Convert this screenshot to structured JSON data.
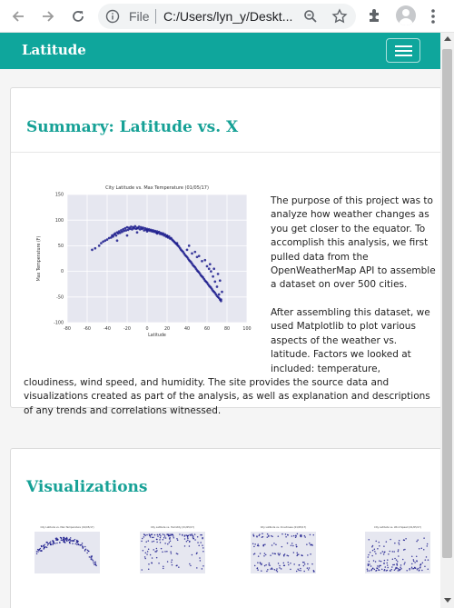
{
  "browser": {
    "omnibox_scheme": "File",
    "omnibox_url": "C:/Users/lyn_y/Deskt..."
  },
  "site": {
    "brand": "Latitude"
  },
  "summary": {
    "title": "Summary: Latitude vs. X",
    "paragraph_1": "The purpose of this project was to analyze how weather changes as you get closer to the equator. To accomplish this analysis, we first pulled data from the OpenWeatherMap API to assemble a dataset on over 500 cities.",
    "paragraph_2": "After assembling this dataset, we used Matplotlib to plot various aspects of the weather vs. latitude. Factors we looked at included: temperature,",
    "paragraph_3": "cloudiness, wind speed, and humidity. The site provides the source data and visualizations created as part of the analysis, as well as explanation and descriptions of any trends and correlations witnessed."
  },
  "visualizations": {
    "title": "Visualizations"
  },
  "chart_data": {
    "type": "scatter",
    "title": "City Latitude vs. Max Temperature (01/05/17)",
    "xlabel": "Latitude",
    "ylabel": "Max Temperature (F)",
    "xlim": [
      -80,
      100
    ],
    "ylim": [
      -100,
      150
    ],
    "xticks": [
      -80,
      -60,
      -40,
      -20,
      0,
      20,
      40,
      60,
      80,
      100
    ],
    "yticks": [
      -100,
      -50,
      0,
      50,
      100,
      150
    ],
    "grid": true,
    "series": [
      {
        "marker_color": "#1a1a8c",
        "x": [
          -55,
          -52,
          -48,
          -46,
          -44,
          -42,
          -40,
          -38,
          -36,
          -35,
          -34,
          -33,
          -32,
          -31,
          -30,
          -29,
          -28,
          -27,
          -26,
          -25,
          -24,
          -23,
          -22,
          -21,
          -20,
          -19,
          -18,
          -17,
          -16,
          -15,
          -14,
          -13,
          -12,
          -11,
          -10,
          -9,
          -8,
          -7,
          -6,
          -5,
          -4,
          -3,
          -2,
          -1,
          0,
          1,
          2,
          3,
          4,
          5,
          6,
          7,
          8,
          9,
          10,
          11,
          12,
          13,
          14,
          15,
          16,
          17,
          18,
          19,
          20,
          21,
          22,
          23,
          24,
          25,
          26,
          27,
          28,
          29,
          30,
          31,
          32,
          33,
          34,
          35,
          36,
          37,
          38,
          39,
          40,
          41,
          42,
          43,
          44,
          45,
          46,
          47,
          48,
          49,
          50,
          51,
          52,
          53,
          54,
          55,
          56,
          57,
          58,
          59,
          60,
          61,
          62,
          63,
          64,
          65,
          66,
          67,
          68,
          69,
          70,
          71,
          72,
          73,
          74,
          75,
          -30,
          -20,
          -10,
          0,
          10,
          20,
          30,
          40,
          45,
          50,
          55,
          60,
          62,
          64,
          66,
          68,
          70,
          72,
          74,
          42,
          48,
          52,
          58,
          63,
          67,
          71,
          73
        ],
        "y": [
          42,
          45,
          50,
          55,
          58,
          60,
          62,
          65,
          66,
          70,
          68,
          72,
          74,
          70,
          76,
          74,
          78,
          75,
          80,
          77,
          82,
          79,
          84,
          80,
          86,
          81,
          85,
          83,
          87,
          82,
          86,
          84,
          88,
          83,
          85,
          84,
          87,
          82,
          86,
          83,
          85,
          80,
          84,
          81,
          83,
          80,
          82,
          79,
          81,
          78,
          80,
          77,
          79,
          76,
          78,
          75,
          77,
          73,
          75,
          72,
          74,
          70,
          72,
          68,
          70,
          66,
          68,
          64,
          65,
          62,
          60,
          58,
          56,
          54,
          52,
          50,
          48,
          45,
          42,
          40,
          38,
          35,
          32,
          30,
          28,
          25,
          22,
          20,
          18,
          15,
          12,
          10,
          8,
          5,
          2,
          0,
          -2,
          -5,
          -8,
          -10,
          -12,
          -15,
          -18,
          -20,
          -22,
          -25,
          -28,
          -30,
          -32,
          -35,
          -38,
          -40,
          -42,
          -45,
          -48,
          -50,
          -52,
          -55,
          -58,
          -40,
          60,
          70,
          76,
          78,
          74,
          68,
          55,
          42,
          35,
          28,
          20,
          10,
          5,
          0,
          -10,
          -20,
          -30,
          -45,
          -55,
          50,
          38,
          30,
          22,
          14,
          5,
          -5,
          -18
        ]
      }
    ]
  },
  "thumbnail_charts": [
    {
      "title": "City Latitude vs. Max Temperature (01/05/17)",
      "pattern": "arch"
    },
    {
      "title": "City Latitude vs. Humidity (01/05/17)",
      "pattern": "top-band"
    },
    {
      "title": "City Latitude vs. Cloudiness (01/05/17)",
      "pattern": "bands"
    },
    {
      "title": "City Latitude vs. Wind Speed (01/05/17)",
      "pattern": "low-band"
    }
  ]
}
